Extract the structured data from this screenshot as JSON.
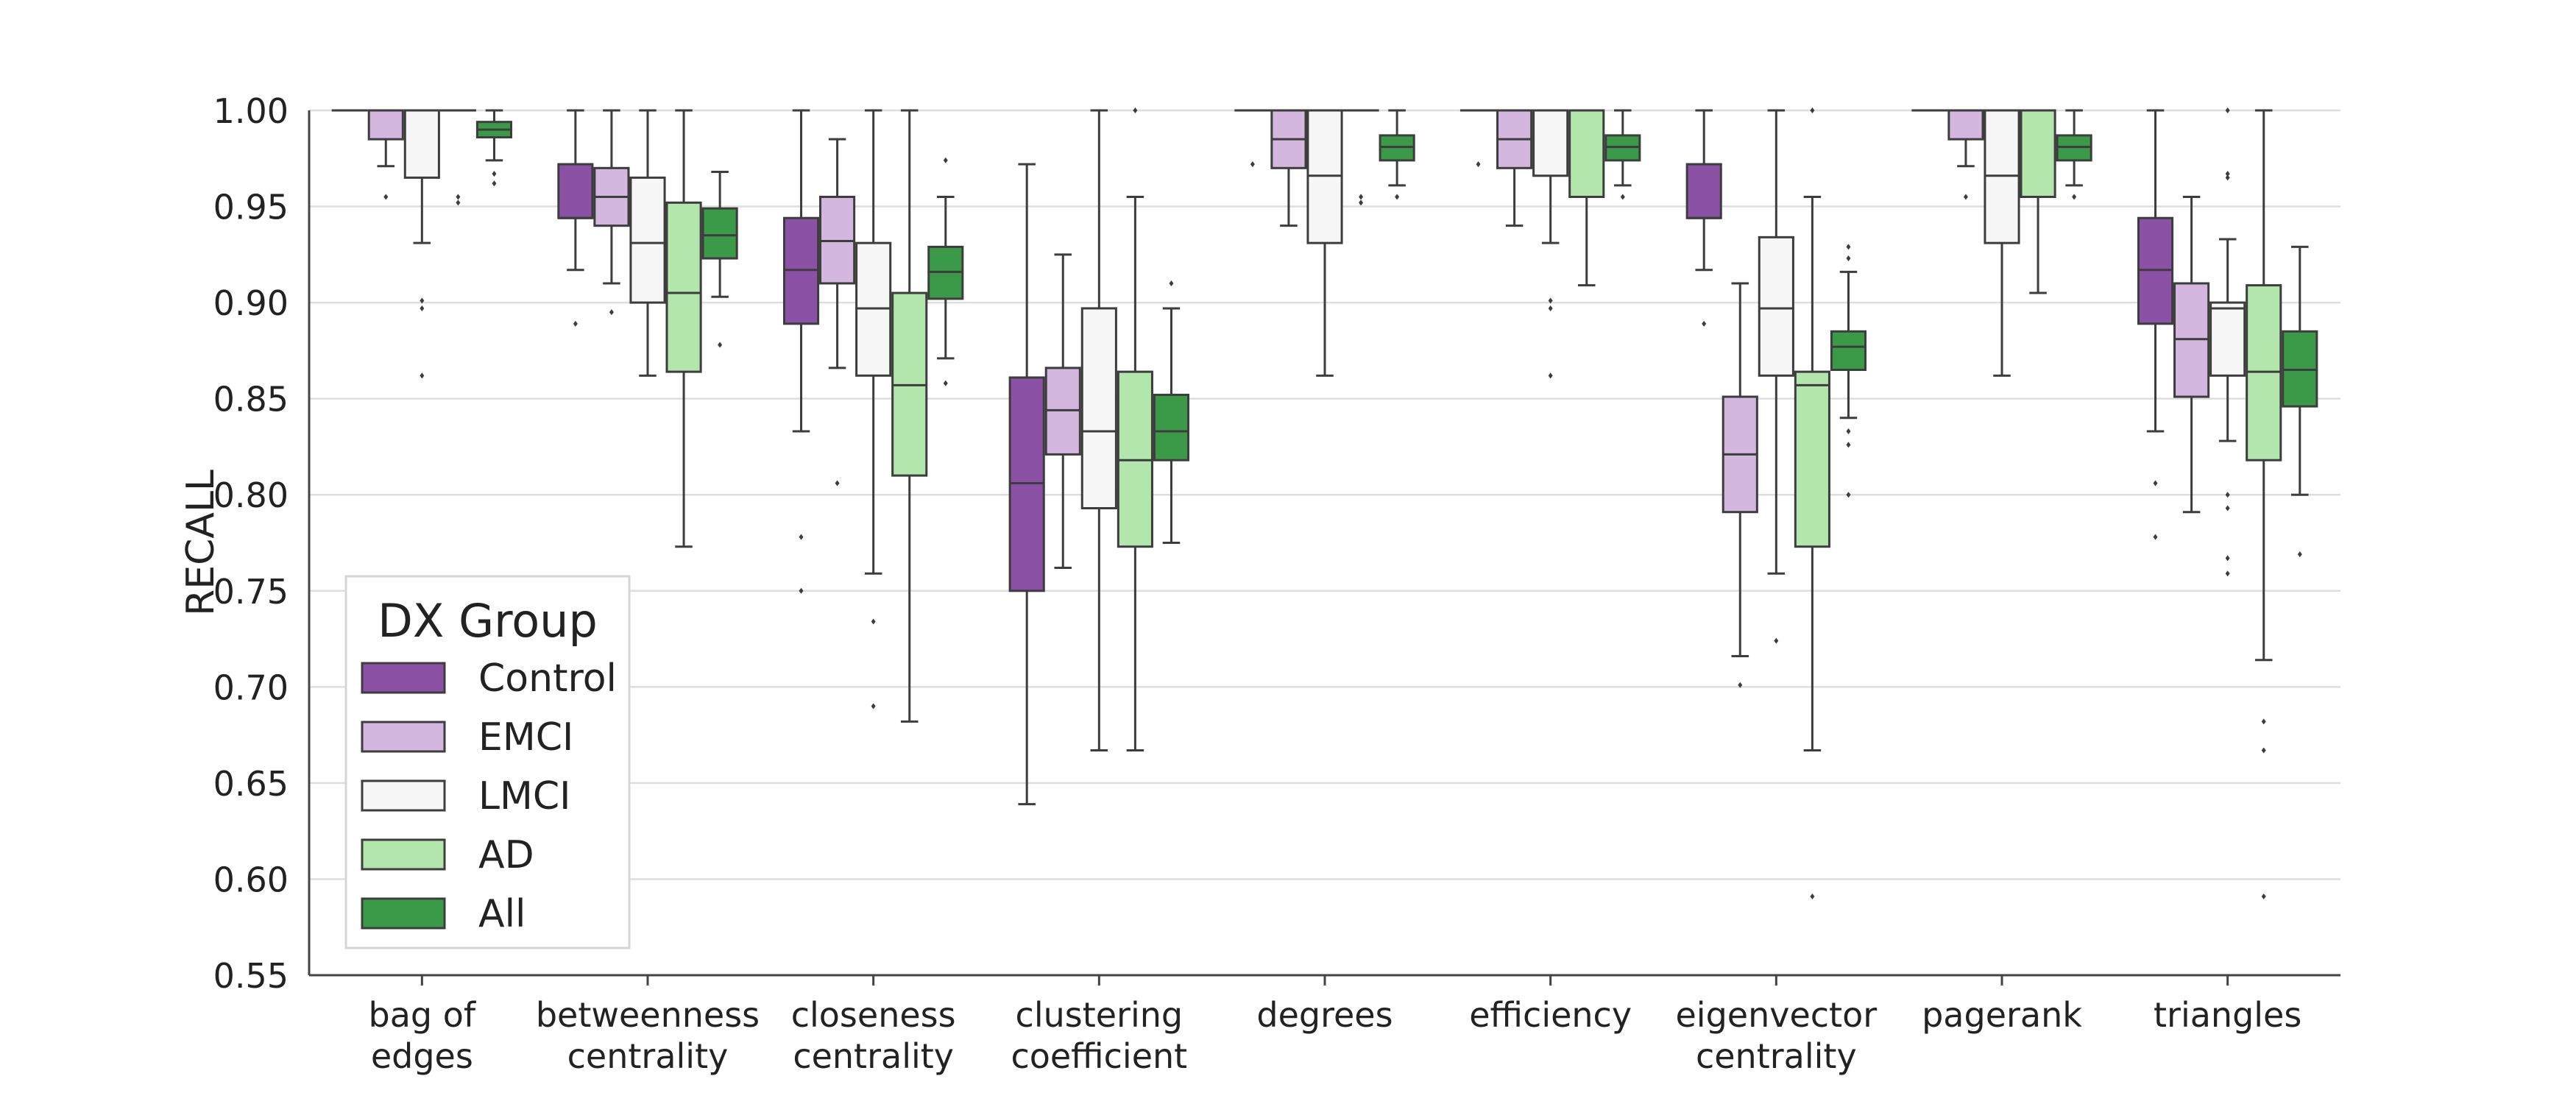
{
  "chart_data": {
    "type": "box",
    "ylabel": "RECALL",
    "ylim": [
      0.55,
      1.0
    ],
    "yticks": [
      "0.55",
      "0.60",
      "0.65",
      "0.70",
      "0.75",
      "0.80",
      "0.85",
      "0.90",
      "0.95",
      "1.00"
    ],
    "grid": "horizontal",
    "legend_position": "lower-left",
    "legend_title": "DX Group",
    "groups": [
      {
        "name": "Control",
        "color": "#8a51a5"
      },
      {
        "name": "EMCI",
        "color": "#d4b7df"
      },
      {
        "name": "LMCI",
        "color": "#f7f7f7"
      },
      {
        "name": "AD",
        "color": "#b3e6ad"
      },
      {
        "name": "All",
        "color": "#3a9a48"
      }
    ],
    "categories": [
      {
        "label": [
          "bag of",
          "edges"
        ],
        "boxes": [
          {
            "q1": 1.0,
            "med": 1.0,
            "q3": 1.0,
            "wlo": 1.0,
            "whi": 1.0,
            "fl": []
          },
          {
            "q1": 0.985,
            "med": 1.0,
            "q3": 1.0,
            "wlo": 0.971,
            "whi": 1.0,
            "fl": [
              0.955
            ]
          },
          {
            "q1": 0.965,
            "med": 1.0,
            "q3": 1.0,
            "wlo": 0.931,
            "whi": 1.0,
            "fl": [
              0.901,
              0.897,
              0.862
            ]
          },
          {
            "q1": 1.0,
            "med": 1.0,
            "q3": 1.0,
            "wlo": 1.0,
            "whi": 1.0,
            "fl": [
              0.955,
              0.952
            ]
          },
          {
            "q1": 0.986,
            "med": 0.99,
            "q3": 0.994,
            "wlo": 0.974,
            "whi": 1.0,
            "fl": [
              0.967,
              0.962
            ]
          }
        ]
      },
      {
        "label": [
          "betweenness",
          "centrality"
        ],
        "boxes": [
          {
            "q1": 0.944,
            "med": 0.944,
            "q3": 0.972,
            "wlo": 0.917,
            "whi": 1.0,
            "fl": [
              0.889
            ]
          },
          {
            "q1": 0.94,
            "med": 0.955,
            "q3": 0.97,
            "wlo": 0.91,
            "whi": 1.0,
            "fl": [
              0.895
            ]
          },
          {
            "q1": 0.9,
            "med": 0.931,
            "q3": 0.965,
            "wlo": 0.862,
            "whi": 1.0,
            "fl": []
          },
          {
            "q1": 0.864,
            "med": 0.905,
            "q3": 0.952,
            "wlo": 0.773,
            "whi": 1.0,
            "fl": []
          },
          {
            "q1": 0.923,
            "med": 0.935,
            "q3": 0.949,
            "wlo": 0.903,
            "whi": 0.968,
            "fl": [
              0.878
            ]
          }
        ]
      },
      {
        "label": [
          "closeness",
          "centrality"
        ],
        "boxes": [
          {
            "q1": 0.889,
            "med": 0.917,
            "q3": 0.944,
            "wlo": 0.833,
            "whi": 1.0,
            "fl": [
              0.778,
              0.75
            ]
          },
          {
            "q1": 0.91,
            "med": 0.932,
            "q3": 0.955,
            "wlo": 0.866,
            "whi": 0.985,
            "fl": [
              0.806
            ]
          },
          {
            "q1": 0.862,
            "med": 0.897,
            "q3": 0.931,
            "wlo": 0.759,
            "whi": 1.0,
            "fl": [
              0.734,
              0.69
            ]
          },
          {
            "q1": 0.81,
            "med": 0.857,
            "q3": 0.905,
            "wlo": 0.682,
            "whi": 1.0,
            "fl": []
          },
          {
            "q1": 0.902,
            "med": 0.916,
            "q3": 0.929,
            "wlo": 0.871,
            "whi": 0.955,
            "fl": [
              0.974,
              0.858
            ]
          }
        ]
      },
      {
        "label": [
          "clustering",
          "coefficient"
        ],
        "boxes": [
          {
            "q1": 0.75,
            "med": 0.806,
            "q3": 0.861,
            "wlo": 0.639,
            "whi": 0.972,
            "fl": []
          },
          {
            "q1": 0.821,
            "med": 0.844,
            "q3": 0.866,
            "wlo": 0.762,
            "whi": 0.925,
            "fl": []
          },
          {
            "q1": 0.793,
            "med": 0.833,
            "q3": 0.897,
            "wlo": 0.667,
            "whi": 1.0,
            "fl": []
          },
          {
            "q1": 0.773,
            "med": 0.818,
            "q3": 0.864,
            "wlo": 0.667,
            "whi": 0.955,
            "fl": [
              1.0
            ]
          },
          {
            "q1": 0.818,
            "med": 0.833,
            "q3": 0.852,
            "wlo": 0.775,
            "whi": 0.897,
            "fl": [
              0.91
            ]
          }
        ]
      },
      {
        "label": [
          "degrees"
        ],
        "boxes": [
          {
            "q1": 1.0,
            "med": 1.0,
            "q3": 1.0,
            "wlo": 1.0,
            "whi": 1.0,
            "fl": [
              0.972
            ]
          },
          {
            "q1": 0.97,
            "med": 0.985,
            "q3": 1.0,
            "wlo": 0.94,
            "whi": 1.0,
            "fl": []
          },
          {
            "q1": 0.931,
            "med": 0.966,
            "q3": 1.0,
            "wlo": 0.862,
            "whi": 1.0,
            "fl": []
          },
          {
            "q1": 1.0,
            "med": 1.0,
            "q3": 1.0,
            "wlo": 1.0,
            "whi": 1.0,
            "fl": [
              0.955,
              0.952
            ]
          },
          {
            "q1": 0.974,
            "med": 0.981,
            "q3": 0.987,
            "wlo": 0.961,
            "whi": 1.0,
            "fl": [
              0.955
            ]
          }
        ]
      },
      {
        "label": [
          "efficiency"
        ],
        "boxes": [
          {
            "q1": 1.0,
            "med": 1.0,
            "q3": 1.0,
            "wlo": 1.0,
            "whi": 1.0,
            "fl": [
              0.972
            ]
          },
          {
            "q1": 0.97,
            "med": 0.985,
            "q3": 1.0,
            "wlo": 0.94,
            "whi": 1.0,
            "fl": []
          },
          {
            "q1": 0.966,
            "med": 1.0,
            "q3": 1.0,
            "wlo": 0.931,
            "whi": 1.0,
            "fl": [
              0.901,
              0.897,
              0.862
            ]
          },
          {
            "q1": 0.955,
            "med": 1.0,
            "q3": 1.0,
            "wlo": 0.909,
            "whi": 1.0,
            "fl": []
          },
          {
            "q1": 0.974,
            "med": 0.981,
            "q3": 0.987,
            "wlo": 0.961,
            "whi": 1.0,
            "fl": [
              0.955
            ]
          }
        ]
      },
      {
        "label": [
          "eigenvector",
          "centrality"
        ],
        "boxes": [
          {
            "q1": 0.944,
            "med": 0.944,
            "q3": 0.972,
            "wlo": 0.917,
            "whi": 1.0,
            "fl": [
              0.889
            ]
          },
          {
            "q1": 0.791,
            "med": 0.821,
            "q3": 0.851,
            "wlo": 0.716,
            "whi": 0.91,
            "fl": [
              0.701
            ]
          },
          {
            "q1": 0.862,
            "med": 0.897,
            "q3": 0.934,
            "wlo": 0.759,
            "whi": 1.0,
            "fl": [
              0.724
            ]
          },
          {
            "q1": 0.773,
            "med": 0.857,
            "q3": 0.864,
            "wlo": 0.667,
            "whi": 0.955,
            "fl": [
              1.0,
              0.591
            ]
          },
          {
            "q1": 0.865,
            "med": 0.877,
            "q3": 0.885,
            "wlo": 0.84,
            "whi": 0.916,
            "fl": [
              0.929,
              0.923,
              0.833,
              0.826,
              0.8
            ]
          }
        ]
      },
      {
        "label": [
          "pagerank"
        ],
        "boxes": [
          {
            "q1": 1.0,
            "med": 1.0,
            "q3": 1.0,
            "wlo": 1.0,
            "whi": 1.0,
            "fl": []
          },
          {
            "q1": 0.985,
            "med": 1.0,
            "q3": 1.0,
            "wlo": 0.971,
            "whi": 1.0,
            "fl": [
              0.955
            ]
          },
          {
            "q1": 0.931,
            "med": 0.966,
            "q3": 1.0,
            "wlo": 0.862,
            "whi": 1.0,
            "fl": []
          },
          {
            "q1": 0.955,
            "med": 1.0,
            "q3": 1.0,
            "wlo": 0.905,
            "whi": 1.0,
            "fl": []
          },
          {
            "q1": 0.974,
            "med": 0.981,
            "q3": 0.987,
            "wlo": 0.961,
            "whi": 1.0,
            "fl": [
              0.955
            ]
          }
        ]
      },
      {
        "label": [
          "triangles"
        ],
        "boxes": [
          {
            "q1": 0.889,
            "med": 0.917,
            "q3": 0.944,
            "wlo": 0.833,
            "whi": 1.0,
            "fl": [
              0.806,
              0.778
            ]
          },
          {
            "q1": 0.851,
            "med": 0.881,
            "q3": 0.91,
            "wlo": 0.791,
            "whi": 0.955,
            "fl": []
          },
          {
            "q1": 0.862,
            "med": 0.897,
            "q3": 0.9,
            "wlo": 0.828,
            "whi": 0.933,
            "fl": [
              1.0,
              0.967,
              0.965,
              0.8,
              0.793,
              0.767,
              0.759
            ]
          },
          {
            "q1": 0.818,
            "med": 0.864,
            "q3": 0.909,
            "wlo": 0.714,
            "whi": 1.0,
            "fl": [
              0.682,
              0.667,
              0.591
            ]
          },
          {
            "q1": 0.846,
            "med": 0.865,
            "q3": 0.885,
            "wlo": 0.8,
            "whi": 0.929,
            "fl": [
              0.769
            ]
          }
        ]
      }
    ]
  }
}
